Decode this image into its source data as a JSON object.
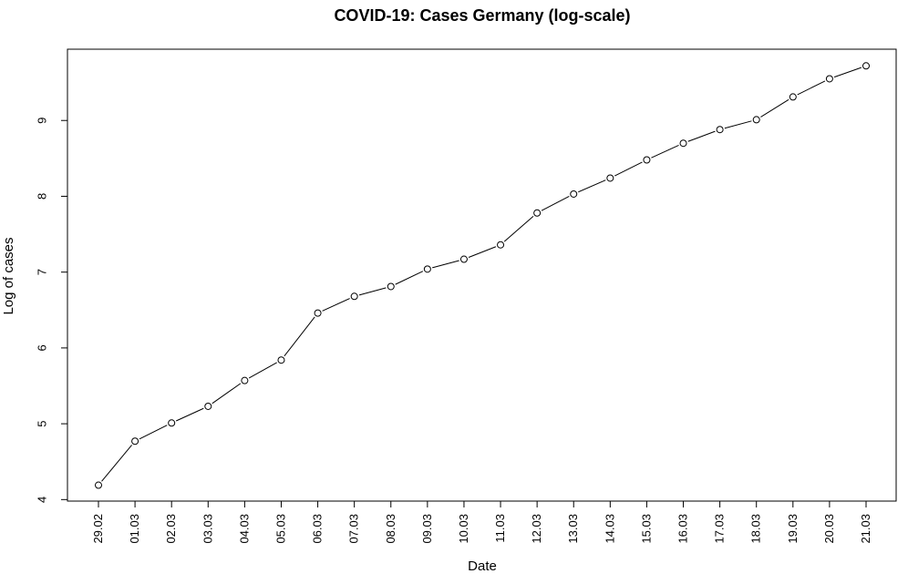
{
  "chart_data": {
    "type": "line",
    "title": "COVID-19: Cases Germany (log-scale)",
    "xlabel": "Date",
    "ylabel": "Log of cases",
    "categories": [
      "29.02",
      "01.03",
      "02.03",
      "03.03",
      "04.03",
      "05.03",
      "06.03",
      "07.03",
      "08.03",
      "09.03",
      "10.03",
      "11.03",
      "12.03",
      "13.03",
      "14.03",
      "15.03",
      "16.03",
      "17.03",
      "18.03",
      "19.03",
      "20.03",
      "21.03"
    ],
    "series": [
      {
        "values": [
          4.19,
          4.77,
          5.01,
          5.23,
          5.57,
          5.84,
          6.46,
          6.68,
          6.81,
          7.04,
          7.17,
          7.36,
          7.78,
          8.03,
          8.24,
          8.48,
          8.7,
          8.88,
          9.01,
          9.31,
          9.55,
          9.72
        ]
      }
    ],
    "yticks": [
      "4",
      "5",
      "6",
      "7",
      "8",
      "9"
    ],
    "ylim": [
      3.98,
      9.94
    ],
    "grid": false,
    "line_color": "#000000",
    "marker": "open-circle"
  }
}
